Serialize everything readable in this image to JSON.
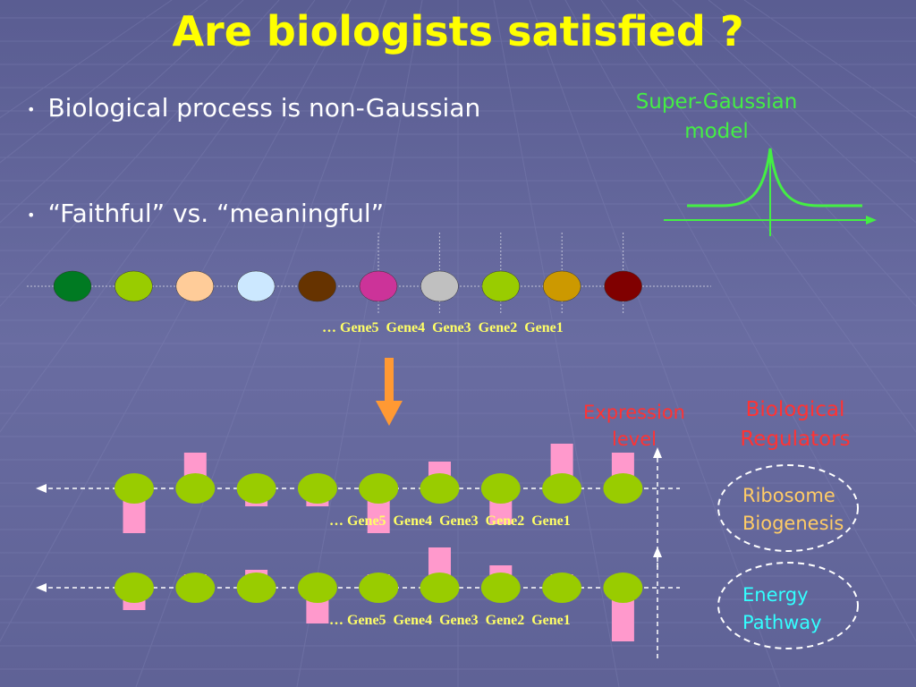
{
  "slide": {
    "title": "Are biologists satisfied ?",
    "bullets": [
      "Biological process is non-Gaussian",
      "“Faithful”  vs. “meaningful”"
    ],
    "bullet_glyph": "•",
    "super_gaussian": {
      "line1": "Super-Gaussian",
      "line2": "model",
      "color": "#44ee44"
    },
    "gene_sequence": "… Gene5  Gene4  Gene3  Gene2  Gene1",
    "top_circle_colors": [
      "#007a22",
      "#99cc00",
      "#ffcc99",
      "#cce8ff",
      "#663300",
      "#cc3399",
      "#c0c0c0",
      "#99cc00",
      "#cc9900",
      "#800000"
    ],
    "arrow_color": "#ff9933",
    "expression_label": {
      "line1": "Expression",
      "line2": "level",
      "color": "#ff3333"
    },
    "regulators_label": {
      "line1": "Biological",
      "line2": "Regulators",
      "color": "#ff3333"
    },
    "modules": [
      {
        "line1": "Ribosome",
        "line2": "Biogenesis",
        "color": "#ffcc66",
        "bar_levels": [
          -1.0,
          0.8,
          -0.4,
          -0.4,
          -1.0,
          0.6,
          -0.8,
          1.0,
          0.8
        ]
      },
      {
        "line1": "Energy",
        "line2": "Pathway",
        "color": "#33ffff",
        "bar_levels": [
          -0.5,
          0.3,
          0.4,
          -0.8,
          0.3,
          0.9,
          0.5,
          0.3,
          -1.2
        ]
      }
    ],
    "module_circle_color": "#99cc00",
    "bar_color": "#ff99cc"
  }
}
